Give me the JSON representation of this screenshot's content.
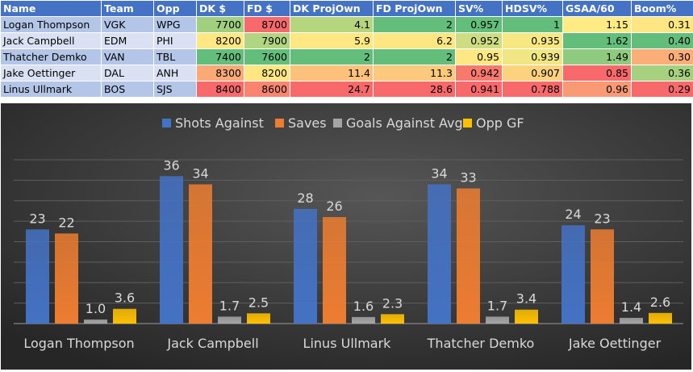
{
  "table": {
    "headers": [
      "Name",
      "Team",
      "Opp",
      "DK $",
      "FD $",
      "DK ProjOwn",
      "FD ProjOwn",
      "SV%",
      "HDSV%",
      "GSAA/60",
      "Boom%"
    ],
    "rows": [
      {
        "cells": [
          "Logan Thompson",
          "VGK",
          "WPG",
          "7700",
          "8700",
          "4.1",
          "2",
          "0.957",
          "1",
          "1.15",
          "0.31"
        ],
        "colors": [
          "#9fcf7f",
          "#f8696b",
          "#b5d67f",
          "#63be7b",
          "#63be7b",
          "#63be7b",
          "#ffeb84",
          "#fee783"
        ]
      },
      {
        "cells": [
          "Jack Campbell",
          "EDM",
          "PHI",
          "8200",
          "7900",
          "5.9",
          "6.2",
          "0.952",
          "0.935",
          "1.62",
          "0.40"
        ],
        "colors": [
          "#ffe884",
          "#b1d580",
          "#ffe884",
          "#fee683",
          "#cfdd82",
          "#f7e883",
          "#63be7b",
          "#63be7b"
        ]
      },
      {
        "cells": [
          "Thatcher Demko",
          "VAN",
          "TBL",
          "7400",
          "7600",
          "2",
          "2",
          "0.95",
          "0.939",
          "1.49",
          "0.30"
        ],
        "colors": [
          "#63be7b",
          "#63be7b",
          "#63be7b",
          "#63be7b",
          "#fde883",
          "#f0e683",
          "#8fcb7e",
          "#fbae78"
        ]
      },
      {
        "cells": [
          "Jake Oettinger",
          "DAL",
          "ANH",
          "8300",
          "8200",
          "11.4",
          "11.3",
          "0.942",
          "0.907",
          "0.85",
          "0.36"
        ],
        "colors": [
          "#fbaa77",
          "#fee683",
          "#fcc27c",
          "#fcc97d",
          "#f87a6e",
          "#fdd27f",
          "#f8696b",
          "#a6d27f"
        ]
      },
      {
        "cells": [
          "Linus Ullmark",
          "BOS",
          "SJS",
          "8400",
          "8600",
          "24.7",
          "28.6",
          "0.941",
          "0.788",
          "0.96",
          "0.29"
        ],
        "colors": [
          "#f8696b",
          "#f98570",
          "#f8696b",
          "#f8696b",
          "#f8696b",
          "#f8696b",
          "#fa9a74",
          "#f8696b"
        ]
      }
    ]
  },
  "chart_data": {
    "type": "bar",
    "categories": [
      "Logan Thompson",
      "Jack Campbell",
      "Linus Ullmark",
      "Thatcher Demko",
      "Jake Oettinger"
    ],
    "series": [
      {
        "name": "Shots Against",
        "values": [
          23,
          36,
          28,
          34,
          24
        ],
        "labels": [
          "23",
          "36",
          "28",
          "34",
          "24"
        ],
        "color": "#4472c4"
      },
      {
        "name": "Saves",
        "values": [
          22,
          34,
          26,
          33,
          23
        ],
        "labels": [
          "22",
          "34",
          "26",
          "33",
          "23"
        ],
        "color": "#ed7d31"
      },
      {
        "name": "Goals Against Avg",
        "values": [
          1.0,
          1.7,
          1.6,
          1.7,
          1.4
        ],
        "labels": [
          "1.0",
          "1.7",
          "1.6",
          "1.7",
          "1.4"
        ],
        "color": "#a5a5a5"
      },
      {
        "name": "Opp GF",
        "values": [
          3.6,
          2.5,
          2.3,
          3.4,
          2.6
        ],
        "labels": [
          "3.6",
          "2.5",
          "2.3",
          "3.4",
          "2.6"
        ],
        "color": "#ffc000"
      }
    ],
    "ylim": [
      0,
      40
    ],
    "grid": true,
    "legend": "top",
    "data_labels": true
  }
}
